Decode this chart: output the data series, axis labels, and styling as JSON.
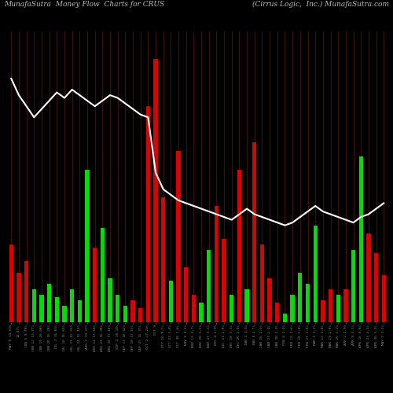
{
  "title_left": "MunafaSutra  Money Flow  Charts for CRUS",
  "title_right": "(Cirrus Logic,  Inc.) MunafaSutra.com",
  "background_color": "#000000",
  "bar_color_positive": "#00dd00",
  "bar_color_negative": "#dd0000",
  "vertical_line_color": "#3a1500",
  "line_color": "#ffffff",
  "title_color": "#bbbbbb",
  "title_fontsize": 6.5,
  "bar_values": [
    0.28,
    0.18,
    0.22,
    0.12,
    0.1,
    0.14,
    0.09,
    0.06,
    0.12,
    0.08,
    0.55,
    0.27,
    0.34,
    0.16,
    0.1,
    0.06,
    0.08,
    0.05,
    0.78,
    0.95,
    0.45,
    0.15,
    0.62,
    0.2,
    0.1,
    0.07,
    0.26,
    0.42,
    0.3,
    0.1,
    0.55,
    0.12,
    0.65,
    0.28,
    0.16,
    0.07,
    0.03,
    0.1,
    0.18,
    0.14,
    0.35,
    0.08,
    0.12,
    0.1,
    0.12,
    0.26,
    0.6,
    0.32,
    0.25,
    0.17
  ],
  "bar_colors": [
    "red",
    "red",
    "red",
    "green",
    "green",
    "green",
    "green",
    "green",
    "green",
    "green",
    "green",
    "red",
    "green",
    "green",
    "green",
    "green",
    "red",
    "red",
    "red",
    "red",
    "red",
    "green",
    "red",
    "red",
    "red",
    "green",
    "green",
    "red",
    "red",
    "green",
    "red",
    "green",
    "red",
    "red",
    "red",
    "red",
    "green",
    "green",
    "green",
    "green",
    "green",
    "red",
    "red",
    "green",
    "red",
    "green",
    "green",
    "red",
    "red",
    "red"
  ],
  "line_values": [
    0.88,
    0.82,
    0.78,
    0.74,
    0.77,
    0.8,
    0.83,
    0.81,
    0.84,
    0.82,
    0.8,
    0.78,
    0.8,
    0.82,
    0.81,
    0.79,
    0.77,
    0.75,
    0.74,
    0.54,
    0.48,
    0.46,
    0.44,
    0.43,
    0.42,
    0.41,
    0.4,
    0.39,
    0.38,
    0.37,
    0.39,
    0.41,
    0.39,
    0.38,
    0.37,
    0.36,
    0.35,
    0.36,
    0.38,
    0.4,
    0.42,
    0.4,
    0.39,
    0.38,
    0.37,
    0.36,
    0.38,
    0.39,
    0.41,
    0.43
  ],
  "x_labels": [
    "MAY 8 14.63%",
    "14.47%",
    "JUN 5 9.78%",
    "JUN 12 13.77%",
    "JUN 19 20.08%",
    "JUN 26 16.28%",
    "JUL 3 16.83%",
    "JUL 10 16.83%",
    "JUL 17 15.55%",
    "JUL 24 15.15%",
    "AUG 7 19.17%",
    "AUG 14 17.54%",
    "AUG 21 16.38%",
    "AUG 28 17.10%",
    "SEP 4 18.18%",
    "SEP 11 18.32%",
    "SEP 18 17.11%",
    "SEP 25 16.37%",
    "OCT 2 17.24%",
    "OCT 9",
    "OCT 16 9.7%",
    "OCT 23 5.0%",
    "OCT 30 3.6%",
    "NOV 6 4.2%",
    "NOV 13 3.7%",
    "NOV 20 3.2%",
    "NOV 27 3.1%",
    "DEC 4 2.9%",
    "DEC 11 2.9%",
    "DEC 18 3.1%",
    "DEC 26 2.8%",
    "JAN 2 3.0%",
    "JAN 9 2.7%",
    "JAN 16 2.5%",
    "JAN 23 2.4%",
    "JAN 30 2.3%",
    "FEB 6 2.4%",
    "FEB 13 2.6%",
    "FEB 20 2.8%",
    "FEB 27 3.0%",
    "MAR 5 3.2%",
    "MAR 12 3.0%",
    "MAR 19 2.9%",
    "MAR 26 3.1%",
    "APR 2 2.9%",
    "APR 9 3.3%",
    "APR 16 4.0%",
    "APR 23 3.5%",
    "APR 30 3.3%",
    "MAY 7 3.2%"
  ],
  "figsize": [
    5.0,
    5.0
  ],
  "dpi": 100
}
